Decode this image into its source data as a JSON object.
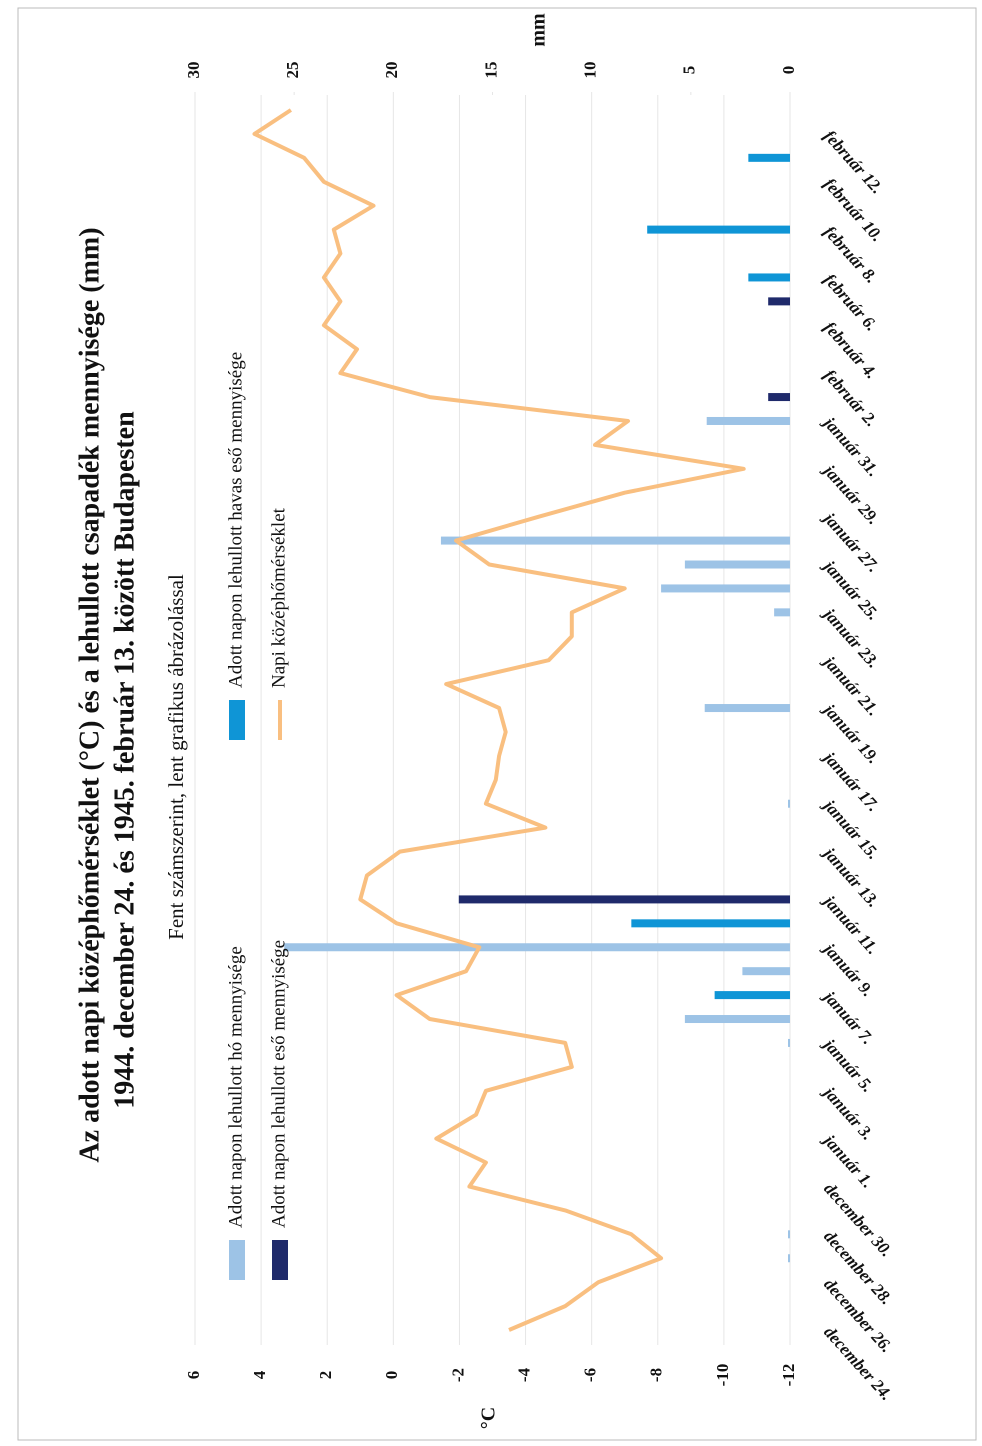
{
  "chart_data": {
    "type": "bar",
    "title": "Az adott napi középhőmérséklet (°C) és a lehullott csapadék mennyisége (mm)",
    "subtitle": "1944. december 24. és 1945. február 13. között Budapesten",
    "note": "Fent számszerint, lent grafikus ábrázolással",
    "ylabel": "°C",
    "y2label": "mm",
    "categories": [
      "december 24.",
      null,
      "december 26.",
      null,
      "december 28.",
      null,
      "december 30.",
      null,
      "január 1.",
      null,
      "január 3.",
      null,
      "január 5.",
      null,
      "január 7.",
      null,
      "január 9.",
      null,
      "január 11.",
      null,
      "január 13.",
      null,
      "január 15.",
      null,
      "január 17.",
      null,
      "január 19.",
      null,
      "január 21.",
      null,
      "január 23.",
      null,
      "január 25.",
      null,
      "január 27.",
      null,
      "január 29.",
      null,
      "január 31.",
      null,
      "február 2.",
      null,
      "február 4.",
      null,
      "február 6.",
      null,
      "február 8.",
      null,
      "február 10.",
      null,
      "február 12.",
      null
    ],
    "series": [
      {
        "name": "Adott napon lehullott hó mennyisége",
        "type": "bar",
        "axis": "y2",
        "color": "#9dc3e6",
        "values": [
          null,
          null,
          null,
          0.1,
          0.1,
          null,
          null,
          null,
          null,
          null,
          null,
          null,
          0.1,
          5.3,
          null,
          2.4,
          25.5,
          null,
          null,
          null,
          null,
          null,
          0.1,
          null,
          null,
          null,
          4.3,
          null,
          null,
          null,
          0.8,
          6.5,
          5.3,
          17.6,
          null,
          null,
          null,
          null,
          4.2,
          null,
          null,
          null,
          null,
          null,
          null,
          null,
          null,
          null,
          null,
          null,
          null,
          null
        ]
      },
      {
        "name": "Adott napon lehullott eső mennyisége",
        "type": "bar",
        "axis": "y2",
        "color": "#1f2a6b",
        "values": [
          null,
          null,
          null,
          null,
          null,
          null,
          null,
          null,
          null,
          null,
          null,
          null,
          null,
          null,
          null,
          null,
          null,
          null,
          16.7,
          null,
          null,
          null,
          null,
          null,
          null,
          null,
          null,
          null,
          null,
          null,
          null,
          null,
          null,
          null,
          null,
          null,
          null,
          null,
          null,
          1.1,
          null,
          null,
          null,
          1.1,
          null,
          null,
          null,
          null,
          null,
          null,
          null,
          null
        ]
      },
      {
        "name": "Adott napon lehullott havas eső mennyisége",
        "type": "bar",
        "axis": "y2",
        "color": "#0f95d6",
        "values": [
          null,
          null,
          null,
          null,
          null,
          null,
          null,
          null,
          null,
          null,
          null,
          null,
          null,
          null,
          3.8,
          null,
          null,
          8.0,
          null,
          null,
          null,
          null,
          null,
          null,
          null,
          null,
          null,
          null,
          null,
          null,
          null,
          null,
          null,
          null,
          null,
          null,
          null,
          null,
          null,
          null,
          null,
          null,
          null,
          null,
          2.1,
          null,
          7.2,
          null,
          null,
          2.1,
          null,
          null
        ]
      },
      {
        "name": "Napi középhőmérséklet",
        "type": "line",
        "axis": "y",
        "color": "#f9bf80",
        "values": [
          -3.5,
          -5.2,
          -6.2,
          -8.1,
          -7.2,
          -5.2,
          -2.3,
          -2.8,
          -1.3,
          -2.5,
          -2.8,
          -5.4,
          -5.2,
          -1.1,
          -0.1,
          -2.2,
          -2.6,
          -0.1,
          1.0,
          0.8,
          -0.2,
          -4.6,
          -2.8,
          -3.1,
          -3.2,
          -3.4,
          -3.2,
          -1.6,
          -4.7,
          -5.4,
          -5.4,
          -7.0,
          -2.9,
          -1.9,
          -4.4,
          -7.0,
          -10.6,
          -6.1,
          -7.1,
          -1.1,
          1.6,
          1.1,
          2.1,
          1.6,
          2.1,
          1.6,
          1.8,
          0.6,
          2.1,
          2.7,
          4.2,
          3.1
        ]
      }
    ],
    "ylim": [
      -12,
      6
    ],
    "yticks": [
      -12,
      -10,
      -8,
      -6,
      -4,
      -2,
      0,
      2,
      4,
      6
    ],
    "y2lim": [
      0,
      30
    ],
    "y2ticks": [
      0,
      5,
      10,
      15,
      20,
      25,
      30
    ],
    "grid": true
  }
}
